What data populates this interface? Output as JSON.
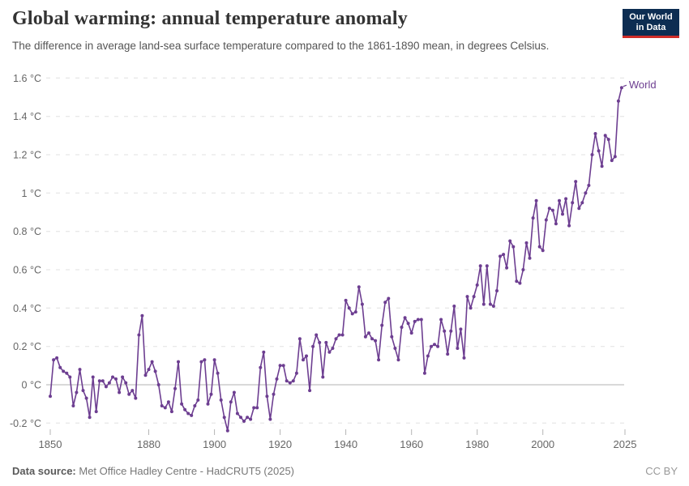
{
  "header": {
    "title": "Global warming: annual temperature anomaly",
    "subtitle": "The difference in average land-sea surface temperature compared to the 1861-1890 mean, in degrees Celsius.",
    "logo": {
      "line1": "Our World",
      "line2": "in Data",
      "bg_color": "#0d2d52",
      "accent_color": "#cf2d28"
    }
  },
  "footer": {
    "source_label": "Data source:",
    "source_text": " Met Office Hadley Centre - HadCRUT5 (2025)",
    "license": "CC BY"
  },
  "chart_data": {
    "type": "line",
    "title": "Global warming: annual temperature anomaly",
    "subtitle": "The difference in average land-sea surface temperature compared to the 1861-1890 mean, in degrees Celsius.",
    "unit": "°C",
    "xlabel": "",
    "ylabel": "",
    "grid": "horizontal dashed gridlines, solid line at 0",
    "legend_position": "end-of-line label",
    "x_axis": {
      "range": [
        1850,
        2025
      ],
      "ticks": [
        1850,
        1880,
        1900,
        1920,
        1940,
        1960,
        1980,
        2000,
        2025
      ]
    },
    "y_axis": {
      "range": [
        -0.3,
        1.66
      ],
      "ticks": [
        -0.2,
        0,
        0.2,
        0.4,
        0.6,
        0.8,
        1,
        1.2,
        1.4,
        1.6
      ],
      "labels": [
        "-0.2 °C",
        "0 °C",
        "0.2 °C",
        "0.4 °C",
        "0.6 °C",
        "0.8 °C",
        "1 °C",
        "1.2 °C",
        "1.4 °C",
        "1.6 °C"
      ]
    },
    "series": [
      {
        "name": "World",
        "color": "#6D3E91",
        "years": [
          1850,
          1851,
          1852,
          1853,
          1854,
          1855,
          1856,
          1857,
          1858,
          1859,
          1860,
          1861,
          1862,
          1863,
          1864,
          1865,
          1866,
          1867,
          1868,
          1869,
          1870,
          1871,
          1872,
          1873,
          1874,
          1875,
          1876,
          1877,
          1878,
          1879,
          1880,
          1881,
          1882,
          1883,
          1884,
          1885,
          1886,
          1887,
          1888,
          1889,
          1890,
          1891,
          1892,
          1893,
          1894,
          1895,
          1896,
          1897,
          1898,
          1899,
          1900,
          1901,
          1902,
          1903,
          1904,
          1905,
          1906,
          1907,
          1908,
          1909,
          1910,
          1911,
          1912,
          1913,
          1914,
          1915,
          1916,
          1917,
          1918,
          1919,
          1920,
          1921,
          1922,
          1923,
          1924,
          1925,
          1926,
          1927,
          1928,
          1929,
          1930,
          1931,
          1932,
          1933,
          1934,
          1935,
          1936,
          1937,
          1938,
          1939,
          1940,
          1941,
          1942,
          1943,
          1944,
          1945,
          1946,
          1947,
          1948,
          1949,
          1950,
          1951,
          1952,
          1953,
          1954,
          1955,
          1956,
          1957,
          1958,
          1959,
          1960,
          1961,
          1962,
          1963,
          1964,
          1965,
          1966,
          1967,
          1968,
          1969,
          1970,
          1971,
          1972,
          1973,
          1974,
          1975,
          1976,
          1977,
          1978,
          1979,
          1980,
          1981,
          1982,
          1983,
          1984,
          1985,
          1986,
          1987,
          1988,
          1989,
          1990,
          1991,
          1992,
          1993,
          1994,
          1995,
          1996,
          1997,
          1998,
          1999,
          2000,
          2001,
          2002,
          2003,
          2004,
          2005,
          2006,
          2007,
          2008,
          2009,
          2010,
          2011,
          2012,
          2013,
          2014,
          2015,
          2016,
          2017,
          2018,
          2019,
          2020,
          2021,
          2022,
          2023,
          2024
        ],
        "values": [
          -0.06,
          0.13,
          0.14,
          0.09,
          0.07,
          0.06,
          0.04,
          -0.11,
          -0.04,
          0.08,
          -0.03,
          -0.07,
          -0.17,
          0.04,
          -0.14,
          0.02,
          0.02,
          -0.01,
          0.01,
          0.04,
          0.03,
          -0.04,
          0.04,
          0.01,
          -0.05,
          -0.03,
          -0.07,
          0.26,
          0.36,
          0.05,
          0.08,
          0.12,
          0.07,
          0.0,
          -0.11,
          -0.12,
          -0.09,
          -0.14,
          -0.02,
          0.12,
          -0.1,
          -0.13,
          -0.15,
          -0.16,
          -0.11,
          -0.08,
          0.12,
          0.13,
          -0.1,
          -0.05,
          0.13,
          0.06,
          -0.08,
          -0.17,
          -0.24,
          -0.09,
          -0.04,
          -0.15,
          -0.17,
          -0.19,
          -0.17,
          -0.18,
          -0.12,
          -0.12,
          0.09,
          0.17,
          -0.06,
          -0.18,
          -0.05,
          0.03,
          0.1,
          0.1,
          0.02,
          0.01,
          0.02,
          0.06,
          0.24,
          0.13,
          0.15,
          -0.03,
          0.2,
          0.26,
          0.22,
          0.04,
          0.22,
          0.17,
          0.19,
          0.24,
          0.26,
          0.26,
          0.44,
          0.4,
          0.37,
          0.38,
          0.51,
          0.42,
          0.25,
          0.27,
          0.24,
          0.23,
          0.13,
          0.31,
          0.43,
          0.45,
          0.25,
          0.19,
          0.13,
          0.3,
          0.35,
          0.32,
          0.27,
          0.33,
          0.34,
          0.34,
          0.06,
          0.15,
          0.2,
          0.21,
          0.2,
          0.34,
          0.28,
          0.16,
          0.28,
          0.41,
          0.19,
          0.29,
          0.14,
          0.46,
          0.4,
          0.46,
          0.52,
          0.62,
          0.42,
          0.62,
          0.42,
          0.41,
          0.49,
          0.67,
          0.68,
          0.61,
          0.75,
          0.72,
          0.54,
          0.53,
          0.6,
          0.74,
          0.66,
          0.87,
          0.96,
          0.72,
          0.7,
          0.86,
          0.92,
          0.91,
          0.84,
          0.96,
          0.89,
          0.97,
          0.83,
          0.95,
          1.06,
          0.92,
          0.95,
          1.0,
          1.04,
          1.2,
          1.31,
          1.22,
          1.14,
          1.3,
          1.28,
          1.17,
          1.19,
          1.48,
          1.55
        ]
      }
    ]
  }
}
